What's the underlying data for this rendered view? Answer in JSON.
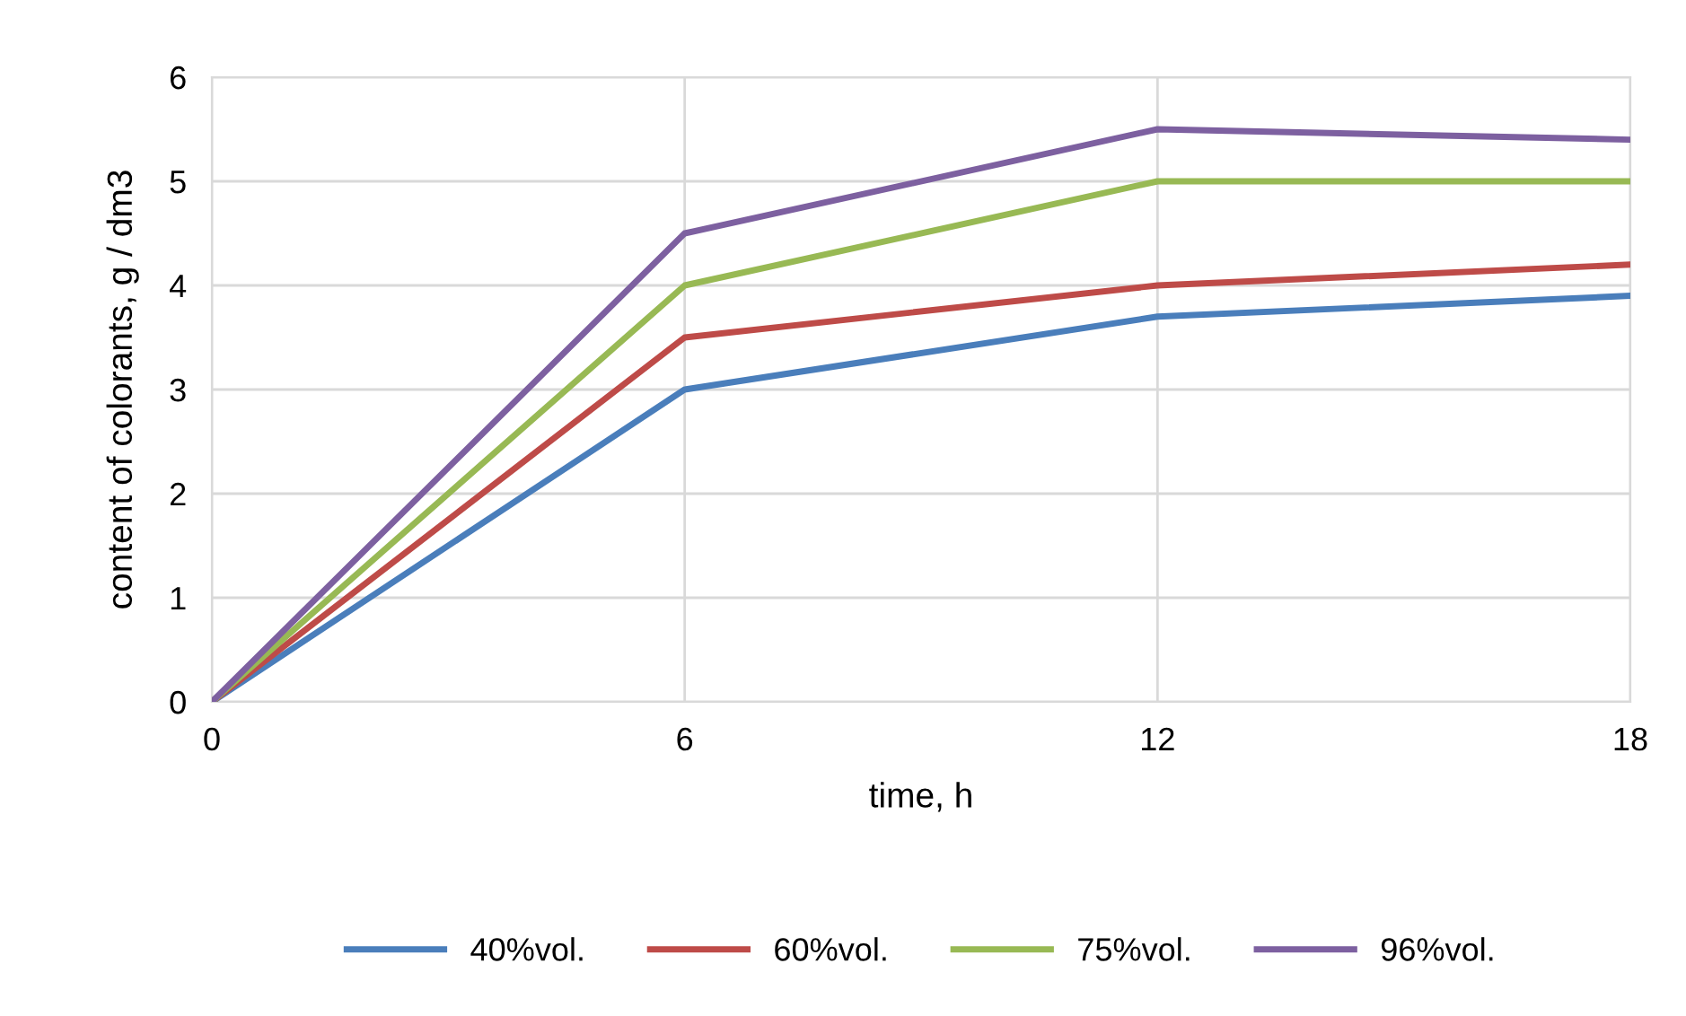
{
  "chart_data": {
    "type": "line",
    "xlabel": "time, h",
    "ylabel": "content of colorants, g / dm3",
    "x": [
      0,
      6,
      12,
      18
    ],
    "series": [
      {
        "name": "40%vol.",
        "color": "#4a7ebb",
        "values": [
          0,
          3.0,
          3.7,
          3.9
        ]
      },
      {
        "name": "60%vol.",
        "color": "#be4b48",
        "values": [
          0,
          3.5,
          4.0,
          4.2
        ]
      },
      {
        "name": "75%vol.",
        "color": "#98b954",
        "values": [
          0,
          4.0,
          5.0,
          5.0
        ]
      },
      {
        "name": "96%vol.",
        "color": "#7d60a0",
        "values": [
          0,
          4.5,
          5.5,
          5.4
        ]
      }
    ],
    "xlim": [
      0,
      18
    ],
    "xticks": [
      0,
      6,
      12,
      18
    ],
    "ylim": [
      0,
      6
    ],
    "yticks": [
      0,
      1,
      2,
      3,
      4,
      5,
      6
    ],
    "grid": true,
    "legend": "bottom",
    "marker": "none",
    "line_style": "solid"
  }
}
